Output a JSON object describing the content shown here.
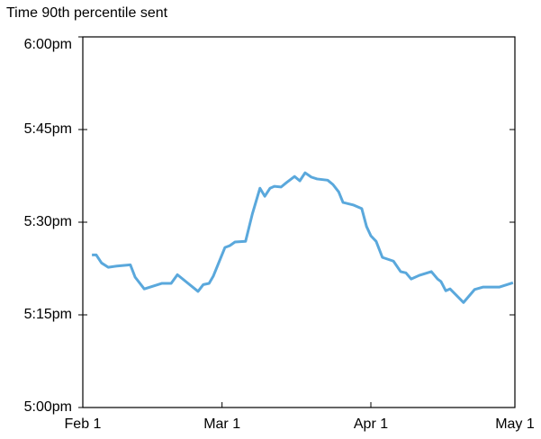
{
  "chart_data": {
    "type": "line",
    "title": "Time 90th percentile sent",
    "x": [
      1.9,
      2.8,
      3.9,
      5.3,
      7.1,
      9.9,
      10.9,
      12.8,
      16.5,
      18.4,
      19.7,
      24,
      25.1,
      26.3,
      27.2,
      29.6,
      30.6,
      31.7,
      33.9,
      35.3,
      36.9,
      37.9,
      39,
      39.9,
      41.3,
      42.4,
      44.1,
      45.2,
      46.3,
      47.6,
      48.8,
      51,
      52.1,
      53.3,
      54.2,
      56.3,
      58.1,
      59.1,
      60,
      61.1,
      62.4,
      64.7,
      66.2,
      67.3,
      68.4,
      70.1,
      72.6,
      73.9,
      74.6,
      75.6,
      76.5,
      79.3,
      81.6,
      83.4,
      86.8,
      89.6
    ],
    "series": [
      {
        "color": "#5aa8dc",
        "values": [
          24.7,
          24.7,
          23.4,
          22.7,
          22.9,
          23.1,
          21.1,
          19.2,
          20.1,
          20.1,
          21.5,
          18.8,
          19.9,
          20.1,
          21.3,
          25.9,
          26.2,
          26.8,
          26.9,
          31.3,
          35.5,
          34.2,
          35.5,
          35.8,
          35.7,
          36.4,
          37.4,
          36.7,
          38,
          37.3,
          37,
          36.8,
          36.1,
          34.9,
          33.2,
          32.8,
          32.2,
          29.3,
          27.8,
          26.9,
          24.3,
          23.7,
          22,
          21.8,
          20.8,
          21.4,
          22,
          20.8,
          20.4,
          18.9,
          19.2,
          17,
          19.1,
          19.5,
          19.5,
          20.2
        ]
      }
    ],
    "xlim": [
      0,
      90
    ],
    "xticks": [
      {
        "value": 0,
        "label": "Feb 1"
      },
      {
        "value": 29,
        "label": "Mar 1"
      },
      {
        "value": 60,
        "label": "Apr 1"
      },
      {
        "value": 90,
        "label": "May 1"
      }
    ],
    "ylim": [
      0,
      60
    ],
    "yticks": [
      {
        "value": 0,
        "label": "5:00pm"
      },
      {
        "value": 15,
        "label": "5:15pm"
      },
      {
        "value": 30,
        "label": "5:30pm"
      },
      {
        "value": 45,
        "label": "5:45pm"
      },
      {
        "value": 60,
        "label": "6:00pm"
      }
    ]
  }
}
